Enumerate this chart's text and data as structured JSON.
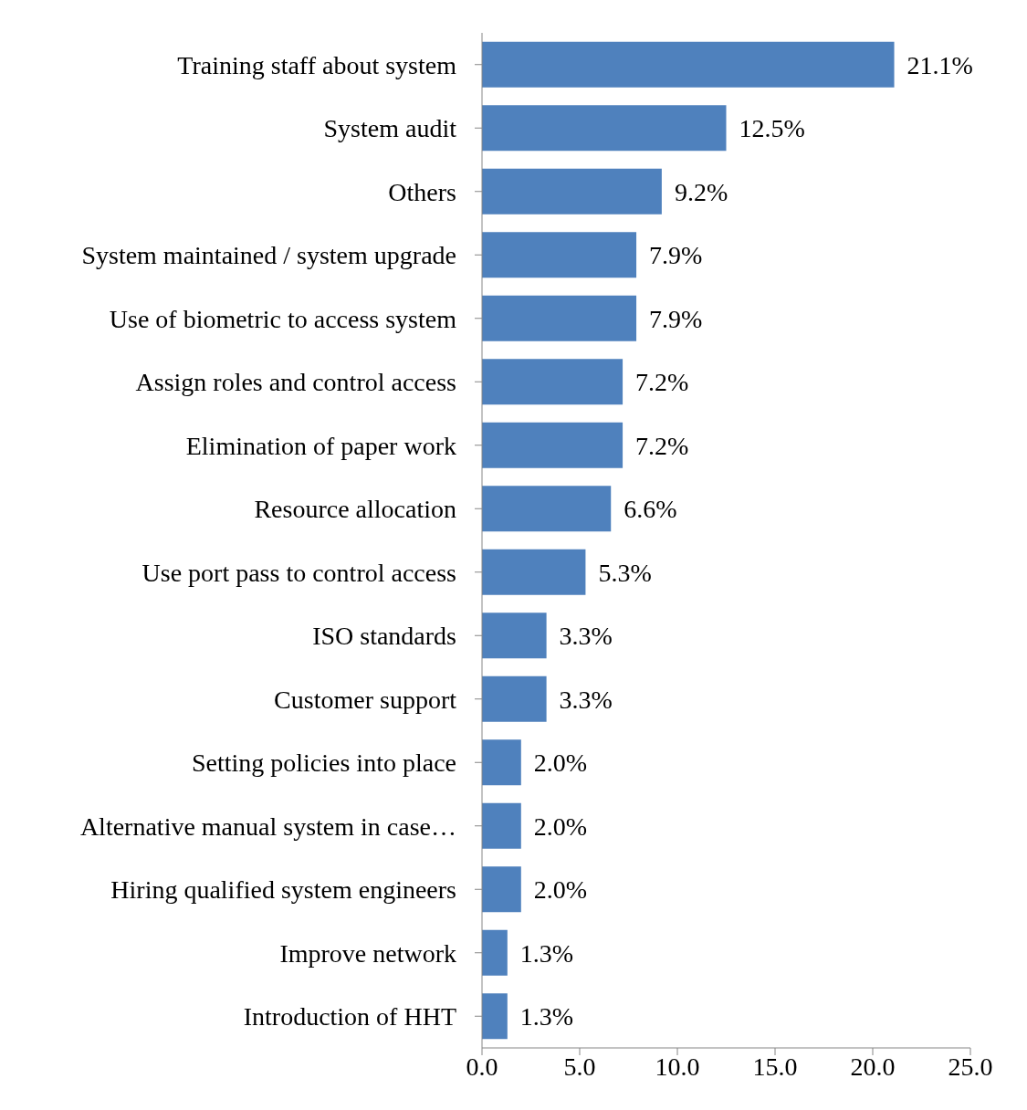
{
  "chart_data": {
    "type": "bar",
    "orientation": "horizontal",
    "categories": [
      "Training staff about system",
      "System audit",
      "Others",
      "System maintained / system upgrade",
      "Use of biometric to access system",
      "Assign roles and control access",
      "Elimination of paper work",
      "Resource allocation",
      "Use port pass to control access",
      "ISO standards",
      "Customer support",
      "Setting policies into place",
      "Alternative manual system in case…",
      "Hiring qualified system engineers",
      "Improve network",
      "Introduction of HHT"
    ],
    "values": [
      21.1,
      12.5,
      9.2,
      7.9,
      7.9,
      7.2,
      7.2,
      6.6,
      5.3,
      3.3,
      3.3,
      2.0,
      2.0,
      2.0,
      1.3,
      1.3
    ],
    "value_labels": [
      "21.1%",
      "12.5%",
      "9.2%",
      "7.9%",
      "7.9%",
      "7.2%",
      "7.2%",
      "6.6%",
      "5.3%",
      "3.3%",
      "3.3%",
      "2.0%",
      "2.0%",
      "2.0%",
      "1.3%",
      "1.3%"
    ],
    "color": "#4f81bd",
    "xlim": [
      0,
      25
    ],
    "xticks": [
      {
        "value": 0,
        "label": "0.0"
      },
      {
        "value": 5,
        "label": "5.0"
      },
      {
        "value": 10,
        "label": "10.0"
      },
      {
        "value": 15,
        "label": "15.0"
      },
      {
        "value": 20,
        "label": "20.0"
      },
      {
        "value": 25,
        "label": "25.0"
      }
    ],
    "grid": false
  }
}
